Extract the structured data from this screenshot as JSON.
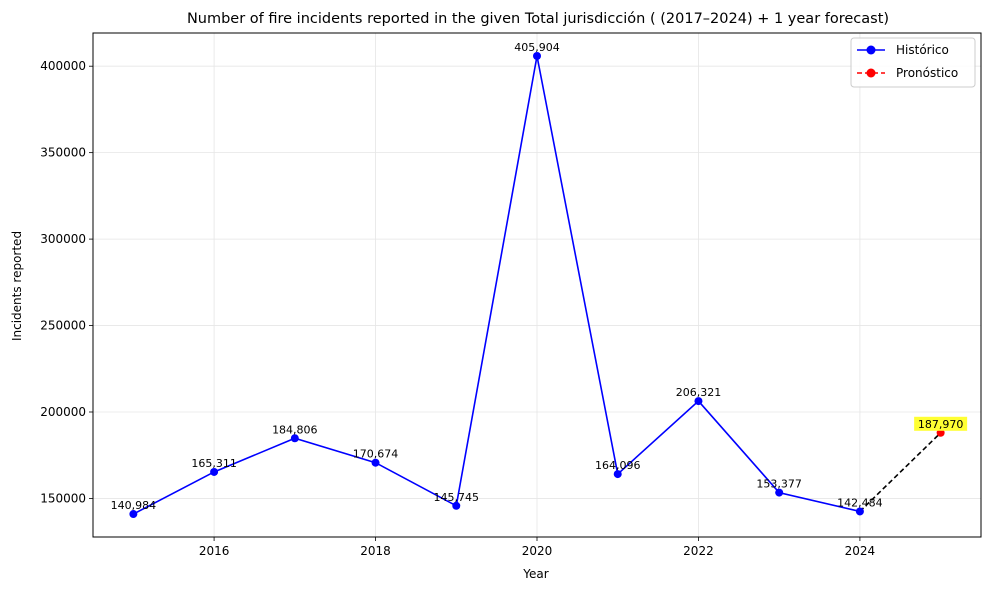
{
  "chart_data": {
    "type": "line",
    "title": "Number of fire incidents reported in the given Total jurisdicción  ( (2017–2024)  + 1 year forecast)",
    "xlabel": "Year",
    "ylabel": "Incidents reported",
    "xlim": [
      2014.5,
      2025.5
    ],
    "ylim": [
      127700,
      419200
    ],
    "x_ticks": [
      2016,
      2018,
      2020,
      2022,
      2024
    ],
    "y_ticks": [
      150000,
      200000,
      250000,
      300000,
      350000,
      400000
    ],
    "grid": true,
    "legend_position": "top-right",
    "series": [
      {
        "name": "Histórico",
        "style": "solid",
        "color": "#0000ff",
        "x": [
          2015,
          2016,
          2017,
          2018,
          2019,
          2020,
          2021,
          2022,
          2023,
          2024
        ],
        "values": [
          140984,
          165311,
          184806,
          170674,
          145745,
          405904,
          164096,
          206321,
          153377,
          142484
        ],
        "labels": [
          "140,984",
          "165,311",
          "184,806",
          "170,674",
          "145,745",
          "405,904",
          "164,096",
          "206,321",
          "153,377",
          "142,484"
        ]
      },
      {
        "name": "Pronóstico",
        "style": "dashed",
        "color": "#ff0000",
        "x": [
          2025
        ],
        "values": [
          187970
        ],
        "labels": [
          "187,970"
        ]
      }
    ],
    "connector": {
      "from": [
        2024,
        142484
      ],
      "to": [
        2025,
        187970
      ],
      "color": "#000000",
      "style": "dashed"
    },
    "forecast_label_highlight": "#ffff33"
  }
}
